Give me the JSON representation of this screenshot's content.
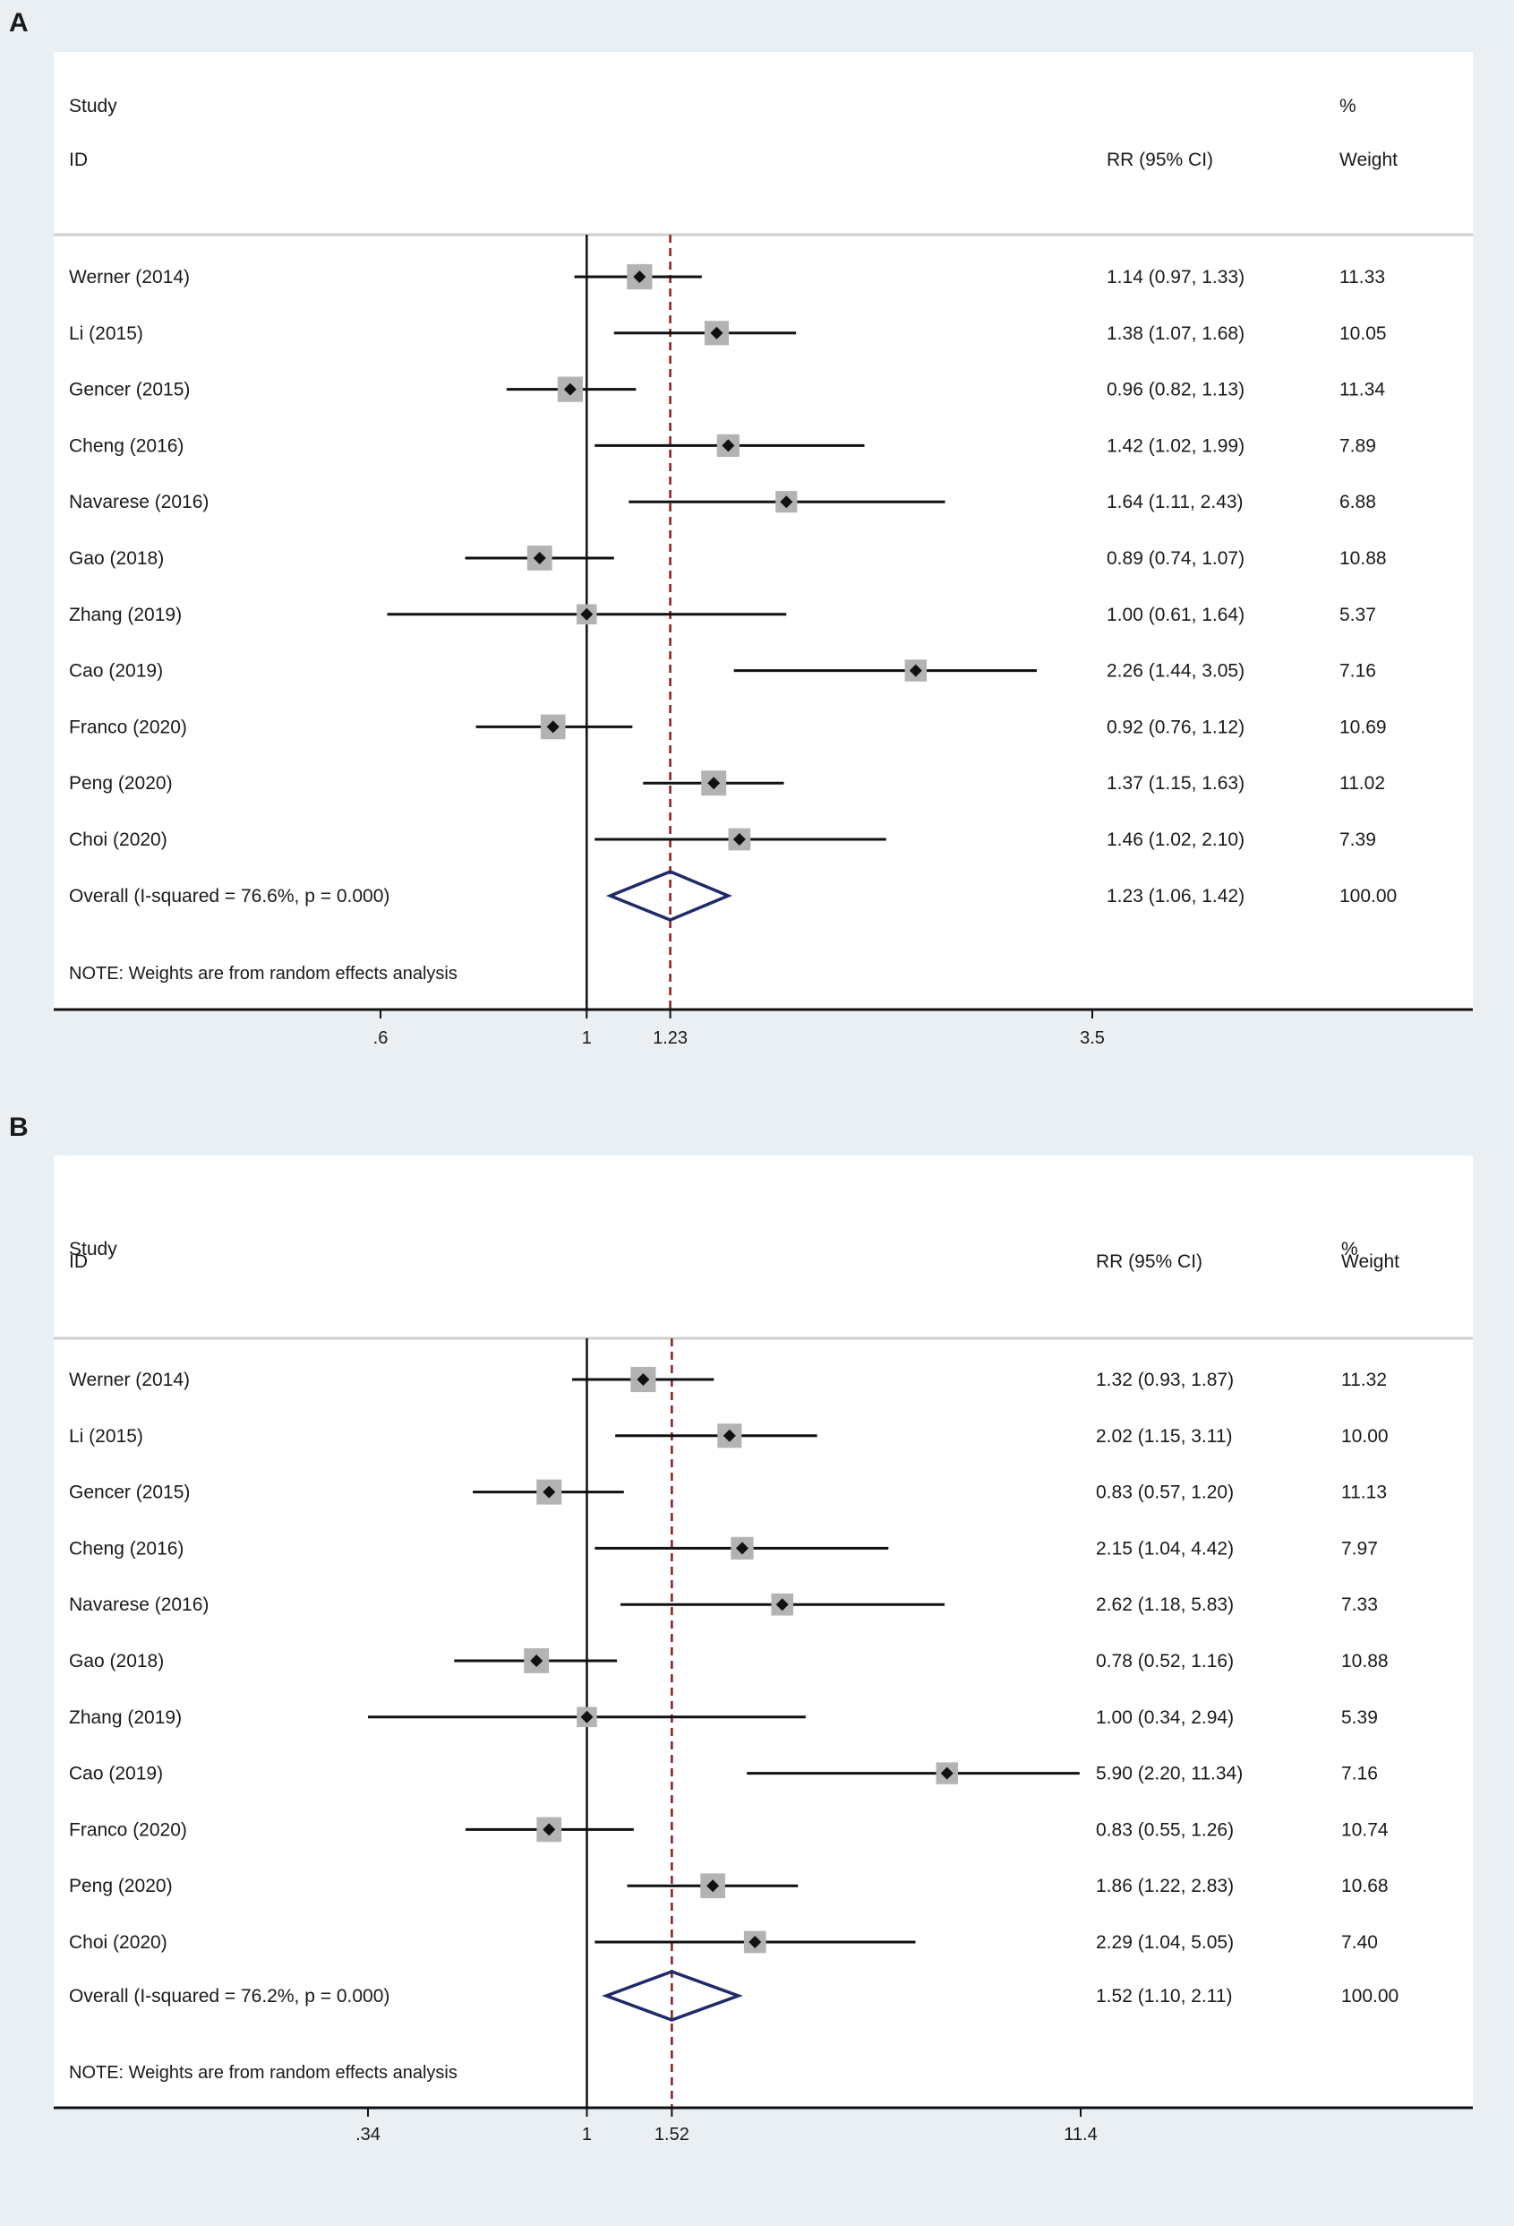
{
  "chart_data": [
    {
      "panel_label": "A",
      "type": "forest",
      "scale": "log",
      "header": {
        "study": "Study",
        "id": "ID",
        "effect": "RR (95% CI)",
        "pct": "%",
        "weight": "Weight"
      },
      "studies": [
        {
          "label": "Werner (2014)",
          "rr": 1.14,
          "lo": 0.97,
          "hi": 1.33,
          "ci_text": "1.14 (0.97, 1.33)",
          "weight": 11.33,
          "weight_text": "11.33"
        },
        {
          "label": "Li (2015)",
          "rr": 1.38,
          "lo": 1.07,
          "hi": 1.68,
          "ci_text": "1.38 (1.07, 1.68)",
          "weight": 10.05,
          "weight_text": "10.05"
        },
        {
          "label": "Gencer (2015)",
          "rr": 0.96,
          "lo": 0.82,
          "hi": 1.13,
          "ci_text": "0.96 (0.82, 1.13)",
          "weight": 11.34,
          "weight_text": "11.34"
        },
        {
          "label": "Cheng (2016)",
          "rr": 1.42,
          "lo": 1.02,
          "hi": 1.99,
          "ci_text": "1.42 (1.02, 1.99)",
          "weight": 7.89,
          "weight_text": "7.89"
        },
        {
          "label": "Navarese (2016)",
          "rr": 1.64,
          "lo": 1.11,
          "hi": 2.43,
          "ci_text": "1.64 (1.11, 2.43)",
          "weight": 6.88,
          "weight_text": "6.88"
        },
        {
          "label": "Gao (2018)",
          "rr": 0.89,
          "lo": 0.74,
          "hi": 1.07,
          "ci_text": "0.89 (0.74, 1.07)",
          "weight": 10.88,
          "weight_text": "10.88"
        },
        {
          "label": "Zhang (2019)",
          "rr": 1.0,
          "lo": 0.61,
          "hi": 1.64,
          "ci_text": "1.00 (0.61, 1.64)",
          "weight": 5.37,
          "weight_text": "5.37"
        },
        {
          "label": "Cao (2019)",
          "rr": 2.26,
          "lo": 1.44,
          "hi": 3.05,
          "ci_text": "2.26 (1.44, 3.05)",
          "weight": 7.16,
          "weight_text": "7.16"
        },
        {
          "label": "Franco (2020)",
          "rr": 0.92,
          "lo": 0.76,
          "hi": 1.12,
          "ci_text": "0.92 (0.76, 1.12)",
          "weight": 10.69,
          "weight_text": "10.69"
        },
        {
          "label": "Peng (2020)",
          "rr": 1.37,
          "lo": 1.15,
          "hi": 1.63,
          "ci_text": "1.37 (1.15, 1.63)",
          "weight": 11.02,
          "weight_text": "11.02"
        },
        {
          "label": "Choi (2020)",
          "rr": 1.46,
          "lo": 1.02,
          "hi": 2.1,
          "ci_text": "1.46 (1.02, 2.10)",
          "weight": 7.39,
          "weight_text": "7.39"
        }
      ],
      "overall": {
        "label": "Overall  (I-squared = 76.6%, p = 0.000)",
        "rr": 1.23,
        "lo": 1.06,
        "hi": 1.42,
        "ci_text": "1.23 (1.06, 1.42)",
        "weight_text": "100.00"
      },
      "note": "NOTE: Weights are from random effects analysis",
      "axis": {
        "min": 0.6,
        "max": 3.5,
        "ticks": [
          {
            "value": 0.6,
            "label": ".6"
          },
          {
            "value": 1,
            "label": "1"
          },
          {
            "value": 1.23,
            "label": "1.23"
          },
          {
            "value": 3.5,
            "label": "3.5"
          }
        ]
      },
      "colors": {
        "box": "#b3b3b3",
        "point": "#111111",
        "ci": "#111111",
        "overall": "#1f2a6b",
        "refline": "#111111",
        "dashline": "#8b1c1c",
        "divider": "#cfcfcf"
      }
    },
    {
      "panel_label": "B",
      "type": "forest",
      "scale": "log",
      "header": {
        "study": "Study",
        "id": "ID",
        "effect": "RR (95% CI)",
        "pct": "%",
        "weight": "Weight"
      },
      "studies": [
        {
          "label": "Werner (2014)",
          "rr": 1.32,
          "lo": 0.93,
          "hi": 1.87,
          "ci_text": "1.32 (0.93, 1.87)",
          "weight": 11.32,
          "weight_text": "11.32"
        },
        {
          "label": "Li (2015)",
          "rr": 2.02,
          "lo": 1.15,
          "hi": 3.11,
          "ci_text": "2.02 (1.15, 3.11)",
          "weight": 10.0,
          "weight_text": "10.00"
        },
        {
          "label": "Gencer (2015)",
          "rr": 0.83,
          "lo": 0.57,
          "hi": 1.2,
          "ci_text": "0.83 (0.57, 1.20)",
          "weight": 11.13,
          "weight_text": "11.13"
        },
        {
          "label": "Cheng (2016)",
          "rr": 2.15,
          "lo": 1.04,
          "hi": 4.42,
          "ci_text": "2.15 (1.04, 4.42)",
          "weight": 7.97,
          "weight_text": "7.97"
        },
        {
          "label": "Navarese (2016)",
          "rr": 2.62,
          "lo": 1.18,
          "hi": 5.83,
          "ci_text": "2.62 (1.18, 5.83)",
          "weight": 7.33,
          "weight_text": "7.33"
        },
        {
          "label": "Gao (2018)",
          "rr": 0.78,
          "lo": 0.52,
          "hi": 1.16,
          "ci_text": "0.78 (0.52, 1.16)",
          "weight": 10.88,
          "weight_text": "10.88"
        },
        {
          "label": "Zhang (2019)",
          "rr": 1.0,
          "lo": 0.34,
          "hi": 2.94,
          "ci_text": "1.00 (0.34, 2.94)",
          "weight": 5.39,
          "weight_text": "5.39"
        },
        {
          "label": "Cao (2019)",
          "rr": 5.9,
          "lo": 2.2,
          "hi": 11.34,
          "ci_text": "5.90 (2.20, 11.34)",
          "weight": 7.16,
          "weight_text": "7.16"
        },
        {
          "label": "Franco (2020)",
          "rr": 0.83,
          "lo": 0.55,
          "hi": 1.26,
          "ci_text": "0.83 (0.55, 1.26)",
          "weight": 10.74,
          "weight_text": "10.74"
        },
        {
          "label": "Peng (2020)",
          "rr": 1.86,
          "lo": 1.22,
          "hi": 2.83,
          "ci_text": "1.86 (1.22, 2.83)",
          "weight": 10.68,
          "weight_text": "10.68"
        },
        {
          "label": "Choi (2020)",
          "rr": 2.29,
          "lo": 1.04,
          "hi": 5.05,
          "ci_text": "2.29 (1.04, 5.05)",
          "weight": 7.4,
          "weight_text": "7.40"
        }
      ],
      "overall": {
        "label": "Overall  (I-squared = 76.2%, p = 0.000)",
        "rr": 1.52,
        "lo": 1.1,
        "hi": 2.11,
        "ci_text": "1.52 (1.10, 2.11)",
        "weight_text": "100.00"
      },
      "note": "NOTE: Weights are from random effects analysis",
      "axis": {
        "min": 0.34,
        "max": 11.4,
        "ticks": [
          {
            "value": 0.34,
            "label": ".34"
          },
          {
            "value": 1,
            "label": "1"
          },
          {
            "value": 1.52,
            "label": "1.52"
          },
          {
            "value": 11.4,
            "label": "11.4"
          }
        ]
      },
      "colors": {
        "box": "#b3b3b3",
        "point": "#111111",
        "ci": "#111111",
        "overall": "#1f2a6b",
        "refline": "#111111",
        "dashline": "#8b1c1c",
        "divider": "#cfcfcf"
      }
    }
  ]
}
